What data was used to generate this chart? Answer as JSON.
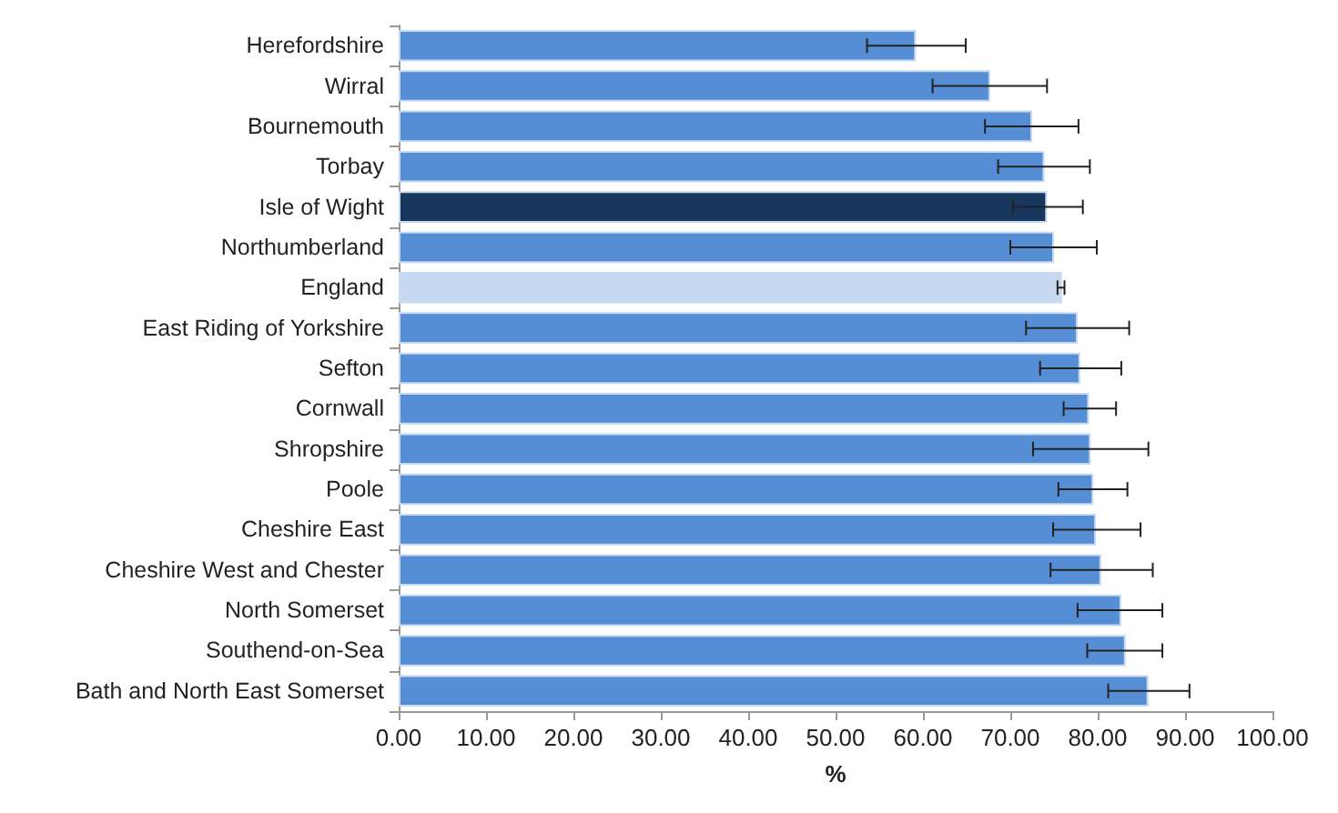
{
  "chart_data": {
    "type": "bar",
    "orientation": "horizontal",
    "xlabel": "%",
    "categories": [
      "Herefordshire",
      "Wirral",
      "Bournemouth",
      "Torbay",
      "Isle of Wight",
      "Northumberland",
      "England",
      "East Riding of Yorkshire",
      "Sefton",
      "Cornwall",
      "Shropshire",
      "Poole",
      "Cheshire East",
      "Cheshire West and Chester",
      "North Somerset",
      "Southend-on-Sea",
      "Bath and North East Somerset"
    ],
    "values": [
      59.2,
      67.7,
      72.5,
      73.9,
      74.2,
      75.0,
      75.9,
      77.7,
      78.0,
      79.0,
      79.2,
      79.5,
      79.8,
      80.4,
      82.7,
      83.2,
      85.8
    ],
    "colors": [
      "#558ed5",
      "#558ed5",
      "#558ed5",
      "#558ed5",
      "#17375e",
      "#558ed5",
      "#c6d9f1",
      "#558ed5",
      "#558ed5",
      "#558ed5",
      "#558ed5",
      "#558ed5",
      "#558ed5",
      "#558ed5",
      "#558ed5",
      "#558ed5",
      "#558ed5"
    ],
    "errors": [
      [
        53.6,
        64.9
      ],
      [
        61.1,
        74.2
      ],
      [
        67.1,
        77.8
      ],
      [
        68.6,
        79.1
      ],
      [
        70.3,
        78.3
      ],
      [
        70.0,
        79.9
      ],
      [
        75.4,
        76.2
      ],
      [
        71.8,
        83.6
      ],
      [
        73.4,
        82.7
      ],
      [
        76.1,
        82.1
      ],
      [
        72.6,
        85.8
      ],
      [
        75.5,
        83.4
      ],
      [
        74.9,
        84.9
      ],
      [
        74.6,
        86.3
      ],
      [
        77.7,
        87.4
      ],
      [
        78.8,
        87.4
      ],
      [
        81.2,
        90.5
      ]
    ],
    "xlim": [
      0,
      100
    ],
    "xticks": [
      {
        "value": 0,
        "label": "0.00"
      },
      {
        "value": 10,
        "label": "10.00"
      },
      {
        "value": 20,
        "label": "20.00"
      },
      {
        "value": 30,
        "label": "30.00"
      },
      {
        "value": 40,
        "label": "40.00"
      },
      {
        "value": 50,
        "label": "50.00"
      },
      {
        "value": 60,
        "label": "60.00"
      },
      {
        "value": 70,
        "label": "70.00"
      },
      {
        "value": 80,
        "label": "80.00"
      },
      {
        "value": 90,
        "label": "90.00"
      },
      {
        "value": 100,
        "label": "100.00"
      }
    ],
    "grid": false
  }
}
